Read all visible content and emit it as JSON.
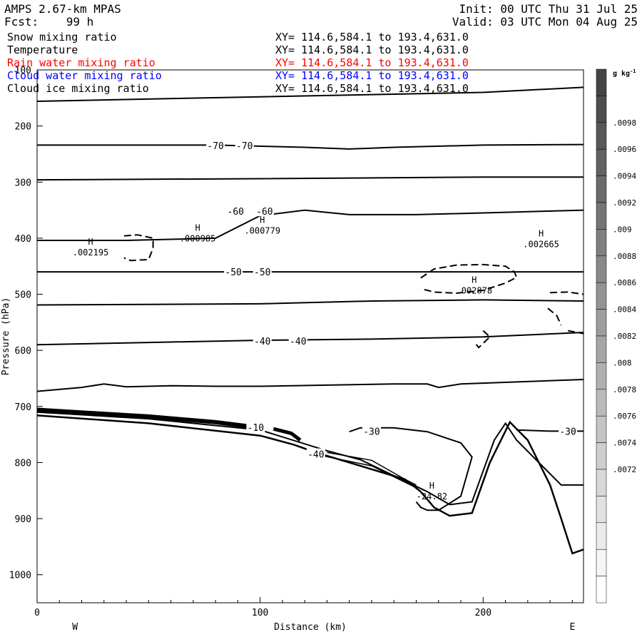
{
  "header": {
    "model": "AMPS 2.67-km MPAS",
    "fcst": "Fcst:    99 h",
    "init": "Init: 00 UTC Thu 31 Jul 25",
    "valid": "Valid: 03 UTC Mon 04 Aug 25"
  },
  "fields": [
    {
      "name": "Snow mixing ratio",
      "xy": "XY= 114.6,584.1 to 193.4,631.0",
      "color": "#000000"
    },
    {
      "name": "Temperature",
      "xy": "XY= 114.6,584.1 to 193.4,631.0",
      "color": "#000000"
    },
    {
      "name": "Rain water mixing ratio",
      "xy": "XY= 114.6,584.1 to 193.4,631.0",
      "color": "#ff0000"
    },
    {
      "name": "Cloud water mixing ratio",
      "xy": "XY= 114.6,584.1 to 193.4,631.0",
      "color": "#0000ff"
    },
    {
      "name": "Cloud ice mixing ratio",
      "xy": "XY= 114.6,584.1 to 193.4,631.0",
      "color": "#000000"
    }
  ],
  "chart_data": {
    "type": "contour cross-section",
    "xlabel": "Distance (km)",
    "ylabel": "Pressure (hPa)",
    "x_ticks": [
      0,
      100,
      200
    ],
    "y_ticks": [
      100,
      200,
      300,
      400,
      500,
      600,
      700,
      800,
      900,
      1000
    ],
    "xlim": [
      0,
      245
    ],
    "ylim": [
      100,
      1050
    ],
    "direction_left": "W",
    "direction_right": "E",
    "colorbar": {
      "unit": "g kg",
      "unit_exp": "-1",
      "labels": [
        ".0098",
        ".0096",
        ".0094",
        ".0092",
        ".009",
        ".0088",
        ".0086",
        ".0084",
        ".0082",
        ".008",
        ".0078",
        ".0076",
        ".0074",
        ".0072"
      ],
      "n_bins": 20
    },
    "isotherm_labels": [
      {
        "text": "-70",
        "x": 80,
        "p": 235
      },
      {
        "text": "-70",
        "x": 93,
        "p": 235
      },
      {
        "text": "-60",
        "x": 89,
        "p": 352
      },
      {
        "text": "-60",
        "x": 102,
        "p": 352
      },
      {
        "text": "-50",
        "x": 88,
        "p": 460
      },
      {
        "text": "-50",
        "x": 101,
        "p": 460
      },
      {
        "text": "-40",
        "x": 101,
        "p": 583
      },
      {
        "text": "-40",
        "x": 117,
        "p": 583
      },
      {
        "text": "-30",
        "x": 150,
        "p": 744
      },
      {
        "text": "-30",
        "x": 238,
        "p": 744
      },
      {
        "text": "-40",
        "x": 125,
        "p": 785
      },
      {
        "text": "-10",
        "x": 98,
        "p": 737
      }
    ],
    "high_labels": [
      {
        "mark": "H",
        "value": ".002195",
        "x": 24,
        "p": 422
      },
      {
        "mark": "H",
        "value": ".000985",
        "x": 72,
        "p": 397
      },
      {
        "mark": "H",
        "value": ".000779",
        "x": 101,
        "p": 383
      },
      {
        "mark": "H",
        "value": ".002665",
        "x": 226,
        "p": 407
      },
      {
        "mark": "H",
        "value": ".002878",
        "x": 196,
        "p": 490
      },
      {
        "mark": "H",
        "value": "-24.82",
        "x": 177,
        "p": 857
      }
    ],
    "isotherms": [
      {
        "label": "-70",
        "points": [
          [
            0,
            156
          ],
          [
            100,
            148
          ],
          [
            200,
            140
          ],
          [
            245,
            131
          ]
        ]
      },
      {
        "label": "-70",
        "points": [
          [
            0,
            234
          ],
          [
            80,
            234
          ],
          [
            120,
            238
          ],
          [
            140,
            241
          ],
          [
            160,
            238
          ],
          [
            200,
            234
          ],
          [
            245,
            233
          ]
        ]
      },
      {
        "label": "-60",
        "points": [
          [
            0,
            296
          ],
          [
            100,
            294
          ],
          [
            200,
            291
          ],
          [
            245,
            291
          ]
        ]
      },
      {
        "label": "-60",
        "points": [
          [
            0,
            404
          ],
          [
            40,
            404
          ],
          [
            80,
            400
          ],
          [
            100,
            360
          ],
          [
            120,
            350
          ],
          [
            140,
            358
          ],
          [
            170,
            358
          ],
          [
            200,
            355
          ],
          [
            245,
            350
          ]
        ]
      },
      {
        "label": "-50",
        "points": [
          [
            0,
            460
          ],
          [
            245,
            460
          ]
        ]
      },
      {
        "label": "-50",
        "points": [
          [
            0,
            519
          ],
          [
            100,
            517
          ],
          [
            150,
            512
          ],
          [
            200,
            510
          ],
          [
            245,
            512
          ]
        ]
      },
      {
        "label": "-40",
        "points": [
          [
            0,
            590
          ],
          [
            50,
            586
          ],
          [
            100,
            582
          ],
          [
            150,
            580
          ],
          [
            200,
            576
          ],
          [
            245,
            568
          ]
        ]
      },
      {
        "label": "-40",
        "points": [
          [
            0,
            673
          ],
          [
            20,
            666
          ],
          [
            30,
            660
          ],
          [
            40,
            665
          ],
          [
            60,
            663
          ],
          [
            80,
            664
          ],
          [
            100,
            664
          ],
          [
            130,
            662
          ],
          [
            160,
            660
          ],
          [
            175,
            660
          ],
          [
            180,
            666
          ],
          [
            190,
            660
          ],
          [
            245,
            652
          ]
        ]
      },
      {
        "label": "-30",
        "points": [
          [
            0,
            710
          ],
          [
            50,
            722
          ],
          [
            100,
            742
          ],
          [
            130,
            779
          ],
          [
            145,
            795
          ],
          [
            175,
            852
          ],
          [
            185,
            875
          ],
          [
            195,
            870
          ],
          [
            205,
            760
          ],
          [
            210,
            730
          ],
          [
            215,
            760
          ],
          [
            235,
            840
          ],
          [
            245,
            840
          ]
        ]
      },
      {
        "label": "-30",
        "points": [
          [
            140,
            745
          ],
          [
            145,
            738
          ],
          [
            160,
            738
          ],
          [
            175,
            745
          ],
          [
            190,
            765
          ],
          [
            195,
            790
          ],
          [
            190,
            860
          ],
          [
            180,
            885
          ],
          [
            175,
            885
          ],
          [
            172,
            880
          ],
          [
            170,
            870
          ]
        ]
      },
      {
        "label": "-30",
        "points": [
          [
            215,
            742
          ],
          [
            230,
            744
          ],
          [
            245,
            744
          ]
        ]
      }
    ],
    "ground": {
      "points": [
        [
          0,
          716
        ],
        [
          50,
          730
        ],
        [
          100,
          752
        ],
        [
          115,
          768
        ],
        [
          125,
          782
        ],
        [
          140,
          800
        ],
        [
          165,
          830
        ],
        [
          172,
          852
        ],
        [
          178,
          880
        ],
        [
          185,
          895
        ],
        [
          195,
          890
        ],
        [
          203,
          800
        ],
        [
          212,
          728
        ],
        [
          220,
          760
        ],
        [
          230,
          840
        ],
        [
          235,
          900
        ],
        [
          240,
          962
        ],
        [
          245,
          955
        ]
      ]
    },
    "dashed_contours": [
      {
        "points": [
          [
            39,
            396
          ],
          [
            45,
            394
          ],
          [
            52,
            400
          ],
          [
            52,
            418
          ],
          [
            50,
            438
          ],
          [
            42,
            440
          ],
          [
            39,
            435
          ]
        ]
      },
      {
        "points": [
          [
            172,
            471
          ],
          [
            178,
            455
          ],
          [
            188,
            448
          ],
          [
            200,
            447
          ],
          [
            210,
            450
          ],
          [
            214,
            460
          ],
          [
            215,
            470
          ],
          [
            210,
            480
          ],
          [
            200,
            493
          ],
          [
            188,
            498
          ],
          [
            178,
            496
          ],
          [
            172,
            490
          ]
        ]
      },
      {
        "points": [
          [
            230,
            497
          ],
          [
            238,
            496
          ],
          [
            245,
            500
          ]
        ]
      },
      {
        "points": [
          [
            229,
            525
          ],
          [
            233,
            538
          ],
          [
            235,
            555
          ]
        ]
      },
      {
        "points": [
          [
            200,
            565
          ],
          [
            203,
            576
          ],
          [
            198,
            595
          ],
          [
            196,
            585
          ]
        ]
      },
      {
        "points": [
          [
            238,
            565
          ],
          [
            245,
            570
          ]
        ]
      }
    ]
  }
}
